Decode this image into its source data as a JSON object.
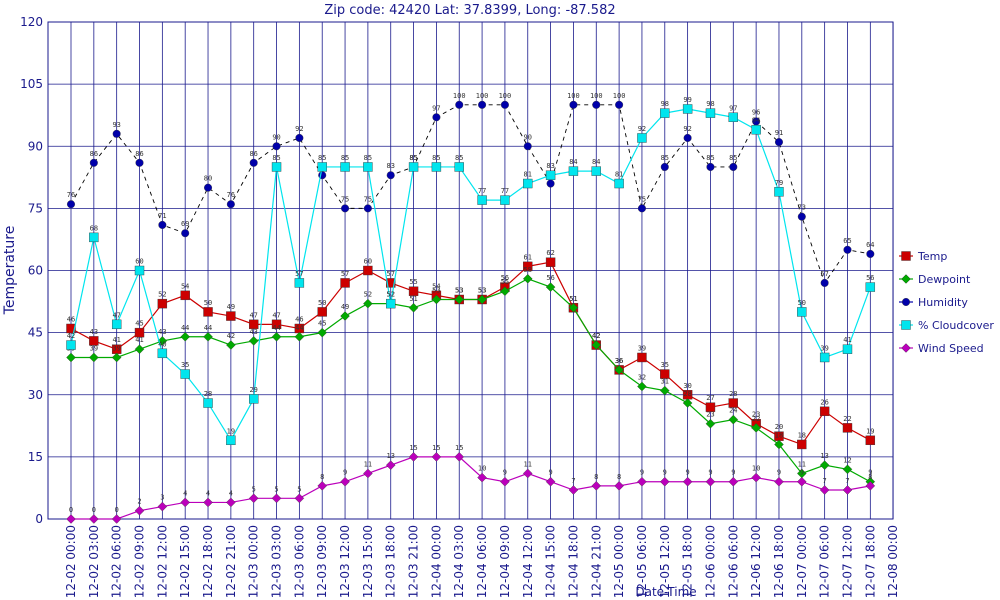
{
  "chart_data": {
    "type": "line",
    "title": "Zip code: 42420  Lat: 37.8399, Long: -87.582",
    "xlabel": "Date-Time",
    "ylabel": "Temperature",
    "ylim": [
      0,
      120
    ],
    "yticks": [
      0,
      15,
      30,
      45,
      60,
      75,
      90,
      105,
      120
    ],
    "grid": true,
    "legend_position": "right",
    "categories": [
      "12-02 00:00",
      "12-02 03:00",
      "12-02 06:00",
      "12-02 09:00",
      "12-02 12:00",
      "12-02 15:00",
      "12-02 18:00",
      "12-02 21:00",
      "12-03 00:00",
      "12-03 03:00",
      "12-03 06:00",
      "12-03 09:00",
      "12-03 12:00",
      "12-03 15:00",
      "12-03 18:00",
      "12-03 21:00",
      "12-04 00:00",
      "12-04 03:00",
      "12-04 06:00",
      "12-04 09:00",
      "12-04 12:00",
      "12-04 15:00",
      "12-04 18:00",
      "12-04 21:00",
      "12-05 00:00",
      "12-05 06:00",
      "12-05 12:00",
      "12-05 18:00",
      "12-06 00:00",
      "12-06 06:00",
      "12-06 12:00",
      "12-06 18:00",
      "12-07 00:00",
      "12-07 06:00",
      "12-07 12:00",
      "12-07 18:00",
      "12-08 00:00"
    ],
    "series": [
      {
        "name": "Temp",
        "color": "#cc0000",
        "marker": "square",
        "line_style": "solid",
        "values": [
          46,
          43,
          41,
          45,
          52,
          54,
          50,
          49,
          47,
          47,
          46,
          50,
          57,
          60,
          57,
          55,
          54,
          53,
          53,
          56,
          61,
          62,
          51,
          42,
          36,
          39,
          35,
          30,
          27,
          28,
          23,
          20,
          18,
          26,
          22,
          19,
          null
        ],
        "labels": [
          "46",
          "43",
          "41",
          "45",
          "52",
          "54",
          "50",
          "49",
          "47",
          "47",
          "46",
          "50",
          "57",
          "60",
          "57",
          "55",
          "54",
          "53",
          "53",
          "56",
          "61",
          "62",
          "51",
          "42",
          "36",
          "39",
          "35",
          "30",
          "27",
          "28",
          "23",
          "20",
          "18",
          "26",
          "22",
          "19",
          ""
        ]
      },
      {
        "name": "Dewpoint",
        "color": "#00aa00",
        "marker": "diamond",
        "line_style": "solid",
        "values": [
          39,
          39,
          39,
          41,
          43,
          44,
          44,
          42,
          43,
          44,
          44,
          45,
          49,
          52,
          52,
          51,
          53,
          53,
          53,
          55,
          58,
          56,
          51,
          42,
          36,
          32,
          31,
          28,
          23,
          24,
          22,
          18,
          11,
          13,
          12,
          9,
          null
        ],
        "labels": [
          "39",
          "39",
          "39",
          "41",
          "43",
          "44",
          "44",
          "42",
          "43",
          "44",
          "44",
          "45",
          "49",
          "52",
          "52",
          "51",
          "53",
          "53",
          "53",
          "55",
          "58",
          "56",
          "51",
          "42",
          "36",
          "32",
          "31",
          "28",
          "23",
          "24",
          "22",
          "18",
          "11",
          "13",
          "12",
          "9",
          ""
        ]
      },
      {
        "name": "Humidity",
        "color": "#0000aa",
        "marker": "circle",
        "line_style": "dashed",
        "values": [
          76,
          86,
          93,
          86,
          71,
          69,
          80,
          76,
          86,
          90,
          92,
          83,
          75,
          75,
          83,
          85,
          97,
          100,
          100,
          100,
          90,
          81,
          100,
          100,
          100,
          75,
          85,
          92,
          85,
          85,
          96,
          91,
          73,
          57,
          65,
          64,
          null
        ],
        "labels": [
          "76",
          "86",
          "93",
          "86",
          "71",
          "69",
          "80",
          "76",
          "86",
          "90",
          "92",
          "83",
          "75",
          "75",
          "83",
          "85",
          "97",
          "100",
          "100",
          "100",
          "90",
          "81",
          "100",
          "100",
          "100",
          "75",
          "85",
          "92",
          "85",
          "85",
          "96",
          "91",
          "73",
          "57",
          "65",
          "64",
          ""
        ]
      },
      {
        "name": "% Cloudcover",
        "color": "#00e5ee",
        "marker": "square",
        "line_style": "solid",
        "values": [
          42,
          68,
          47,
          60,
          40,
          35,
          28,
          19,
          29,
          85,
          57,
          85,
          85,
          85,
          52,
          85,
          85,
          85,
          77,
          77,
          81,
          83,
          84,
          84,
          81,
          92,
          98,
          99,
          98,
          97,
          94,
          79,
          50,
          39,
          41,
          56,
          null
        ],
        "labels": [
          "42",
          "68",
          "47",
          "60",
          "40",
          "35",
          "28",
          "19",
          "29",
          "85",
          "57",
          "85",
          "85",
          "85",
          "52",
          "85",
          "85",
          "85",
          "77",
          "77",
          "81",
          "83",
          "84",
          "84",
          "81",
          "92",
          "98",
          "99",
          "98",
          "97",
          "94",
          "79",
          "50",
          "39",
          "41",
          "56",
          ""
        ]
      },
      {
        "name": "Wind Speed",
        "color": "#bb00bb",
        "marker": "diamond",
        "line_style": "solid",
        "values": [
          0,
          0,
          0,
          2,
          3,
          4,
          4,
          4,
          5,
          5,
          5,
          8,
          9,
          11,
          13,
          15,
          15,
          15,
          10,
          9,
          11,
          9,
          7,
          8,
          8,
          9,
          9,
          9,
          9,
          9,
          10,
          9,
          9,
          7,
          7,
          8,
          null
        ],
        "labels": [
          "0",
          "0",
          "0",
          "2",
          "3",
          "4",
          "4",
          "4",
          "5",
          "5",
          "5",
          "8",
          "9",
          "11",
          "13",
          "15",
          "15",
          "15",
          "10",
          "9",
          "11",
          "9",
          "7",
          "8",
          "8",
          "9",
          "9",
          "9",
          "9",
          "9",
          "10",
          "9",
          "9",
          "7",
          "7",
          "8",
          ""
        ]
      }
    ]
  }
}
